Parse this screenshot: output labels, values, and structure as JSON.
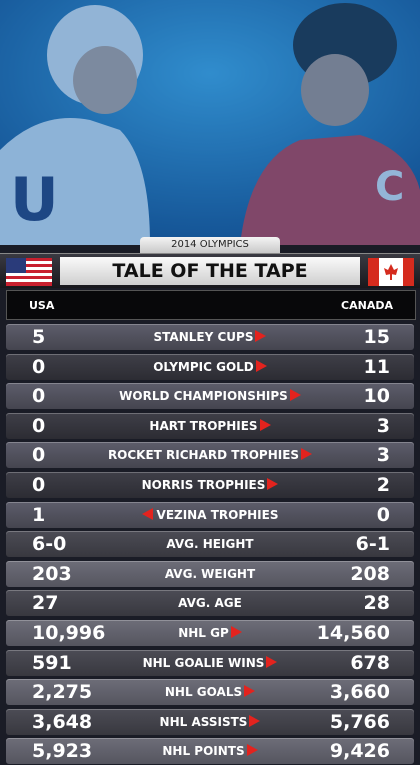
{
  "header": {
    "subtitle": "2014 OLYMPICS",
    "title": "TALE OF THE TAPE"
  },
  "columns": {
    "left": "USA",
    "right": "CANADA"
  },
  "rows": [
    {
      "left": "5",
      "label": "STANLEY CUPS",
      "right": "15",
      "arrow": "right"
    },
    {
      "left": "0",
      "label": "OLYMPIC GOLD",
      "right": "11",
      "arrow": "right"
    },
    {
      "left": "0",
      "label": "WORLD CHAMPIONSHIPS",
      "right": "10",
      "arrow": "right"
    },
    {
      "left": "0",
      "label": "HART TROPHIES",
      "right": "3",
      "arrow": "right"
    },
    {
      "left": "0",
      "label": "ROCKET RICHARD TROPHIES",
      "right": "3",
      "arrow": "right"
    },
    {
      "left": "0",
      "label": "NORRIS TROPHIES",
      "right": "2",
      "arrow": "right"
    },
    {
      "left": "1",
      "label": "VEZINA TROPHIES",
      "right": "0",
      "arrow": "left"
    },
    {
      "left": "6-0",
      "label": "AVG. HEIGHT",
      "right": "6-1"
    },
    {
      "left": "203",
      "label": "AVG. WEIGHT",
      "right": "208"
    },
    {
      "left": "27",
      "label": "AVG. AGE",
      "right": "28"
    },
    {
      "left": "10,996",
      "label": "NHL GP",
      "right": "14,560",
      "arrow": "right"
    },
    {
      "left": "591",
      "label": "NHL GOALIE WINS",
      "right": "678",
      "arrow": "right"
    },
    {
      "left": "2,275",
      "label": "NHL GOALS",
      "right": "3,660",
      "arrow": "right"
    },
    {
      "left": "3,648",
      "label": "NHL ASSISTS",
      "right": "5,766",
      "arrow": "right"
    },
    {
      "left": "5,923",
      "label": "NHL POINTS",
      "right": "9,426",
      "arrow": "right"
    }
  ]
}
